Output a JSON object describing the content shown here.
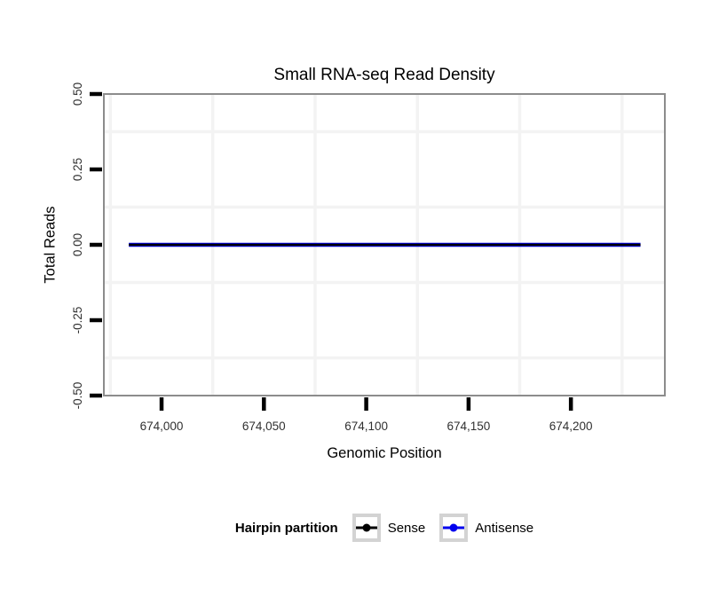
{
  "chart_data": {
    "type": "line",
    "title": "Small RNA-seq Read Density",
    "xlabel": "Genomic Position",
    "ylabel": "Total Reads",
    "xlim": [
      673971.8,
      674245.9
    ],
    "ylim": [
      -0.5,
      0.5
    ],
    "x_ticks": [
      {
        "value": 674000,
        "label": "674,000"
      },
      {
        "value": 674050,
        "label": "674,050"
      },
      {
        "value": 674100,
        "label": "674,100"
      },
      {
        "value": 674150,
        "label": "674,150"
      },
      {
        "value": 674200,
        "label": "674,200"
      }
    ],
    "y_ticks": [
      {
        "value": 0.5,
        "label": "0.50"
      },
      {
        "value": 0.25,
        "label": "0.25"
      },
      {
        "value": 0,
        "label": "0.00"
      },
      {
        "value": -0.25,
        "label": "-0.25"
      },
      {
        "value": -0.5,
        "label": "-0.50"
      }
    ],
    "x_minor_gridlines": [
      673975,
      674025,
      674075,
      674125,
      674175,
      674225
    ],
    "y_minor_gridlines": [
      0.375,
      0.125,
      -0.125,
      -0.375
    ],
    "grid": "minor-only",
    "legend_position": "bottom",
    "legend_title": "Hairpin partition",
    "legend_glyph": "line-with-point",
    "series": [
      {
        "name": "Sense",
        "color": "#000000",
        "x": [
          673984,
          674234
        ],
        "y": [
          0,
          0
        ],
        "linewidth": 2.5
      },
      {
        "name": "Antisense",
        "color": "#0000EE",
        "x": [
          673984,
          674234
        ],
        "y": [
          0,
          0
        ],
        "linewidth": 4.5
      }
    ],
    "colors": {
      "panel_border": "#8c8c8c",
      "grid": "#f3f3f3",
      "tick": "#000000",
      "tick_label": "#303030",
      "legend_key_border": "#d3d3d3"
    }
  }
}
